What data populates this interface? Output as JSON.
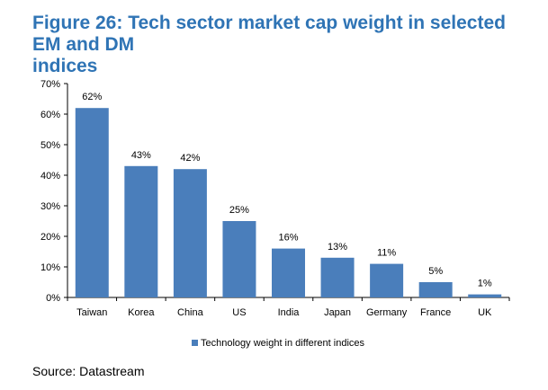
{
  "figure": {
    "title_line1": "Figure 26: Tech sector market cap weight in selected EM and DM",
    "title_line2": "indices",
    "source": "Source: Datastream"
  },
  "colors": {
    "title": "#2f74b5",
    "bar": "#4a7ebb"
  },
  "chart_data": {
    "type": "bar",
    "categories": [
      "Taiwan",
      "Korea",
      "China",
      "US",
      "India",
      "Japan",
      "Germany",
      "France",
      "UK"
    ],
    "series": [
      {
        "name": "Technology weight in different indices",
        "values": [
          62,
          43,
          42,
          25,
          16,
          13,
          11,
          5,
          1
        ]
      }
    ],
    "data_labels": [
      "62%",
      "43%",
      "42%",
      "25%",
      "16%",
      "13%",
      "11%",
      "5%",
      "1%"
    ],
    "y_ticks": [
      0,
      10,
      20,
      30,
      40,
      50,
      60,
      70
    ],
    "y_tick_labels": [
      "0%",
      "10%",
      "20%",
      "30%",
      "40%",
      "50%",
      "60%",
      "70%"
    ],
    "ylim": [
      0,
      70
    ],
    "grid": false,
    "legend_position": "bottom"
  }
}
